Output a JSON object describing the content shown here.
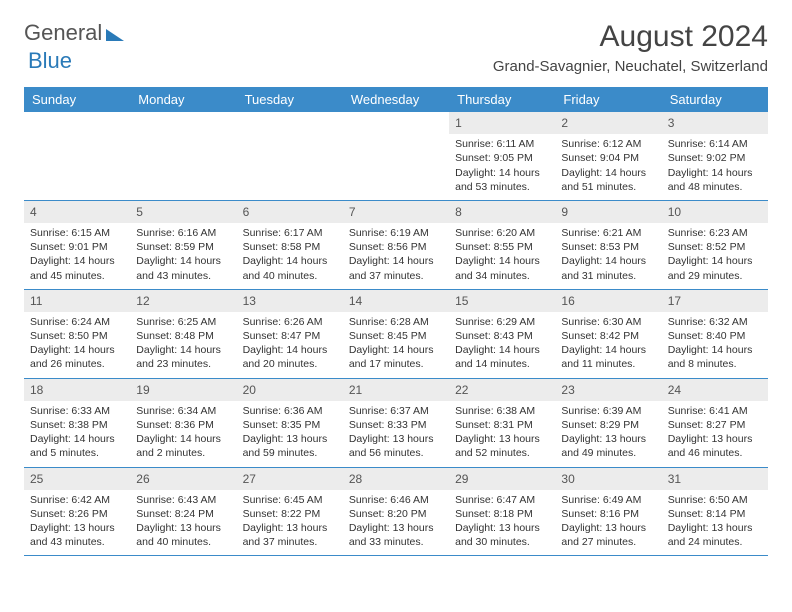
{
  "logo": {
    "text1": "General",
    "text2": "Blue"
  },
  "title": {
    "month": "August 2024",
    "location": "Grand-Savagnier, Neuchatel, Switzerland"
  },
  "colors": {
    "header_bg": "#3b8bc9",
    "header_text": "#ffffff",
    "daynum_bg": "#ececec",
    "border": "#3b8bc9",
    "logo_blue": "#2a7ab8"
  },
  "weekdays": [
    "Sunday",
    "Monday",
    "Tuesday",
    "Wednesday",
    "Thursday",
    "Friday",
    "Saturday"
  ],
  "weeks": [
    [
      null,
      null,
      null,
      null,
      {
        "n": "1",
        "sr": "Sunrise: 6:11 AM",
        "ss": "Sunset: 9:05 PM",
        "dl": "Daylight: 14 hours and 53 minutes."
      },
      {
        "n": "2",
        "sr": "Sunrise: 6:12 AM",
        "ss": "Sunset: 9:04 PM",
        "dl": "Daylight: 14 hours and 51 minutes."
      },
      {
        "n": "3",
        "sr": "Sunrise: 6:14 AM",
        "ss": "Sunset: 9:02 PM",
        "dl": "Daylight: 14 hours and 48 minutes."
      }
    ],
    [
      {
        "n": "4",
        "sr": "Sunrise: 6:15 AM",
        "ss": "Sunset: 9:01 PM",
        "dl": "Daylight: 14 hours and 45 minutes."
      },
      {
        "n": "5",
        "sr": "Sunrise: 6:16 AM",
        "ss": "Sunset: 8:59 PM",
        "dl": "Daylight: 14 hours and 43 minutes."
      },
      {
        "n": "6",
        "sr": "Sunrise: 6:17 AM",
        "ss": "Sunset: 8:58 PM",
        "dl": "Daylight: 14 hours and 40 minutes."
      },
      {
        "n": "7",
        "sr": "Sunrise: 6:19 AM",
        "ss": "Sunset: 8:56 PM",
        "dl": "Daylight: 14 hours and 37 minutes."
      },
      {
        "n": "8",
        "sr": "Sunrise: 6:20 AM",
        "ss": "Sunset: 8:55 PM",
        "dl": "Daylight: 14 hours and 34 minutes."
      },
      {
        "n": "9",
        "sr": "Sunrise: 6:21 AM",
        "ss": "Sunset: 8:53 PM",
        "dl": "Daylight: 14 hours and 31 minutes."
      },
      {
        "n": "10",
        "sr": "Sunrise: 6:23 AM",
        "ss": "Sunset: 8:52 PM",
        "dl": "Daylight: 14 hours and 29 minutes."
      }
    ],
    [
      {
        "n": "11",
        "sr": "Sunrise: 6:24 AM",
        "ss": "Sunset: 8:50 PM",
        "dl": "Daylight: 14 hours and 26 minutes."
      },
      {
        "n": "12",
        "sr": "Sunrise: 6:25 AM",
        "ss": "Sunset: 8:48 PM",
        "dl": "Daylight: 14 hours and 23 minutes."
      },
      {
        "n": "13",
        "sr": "Sunrise: 6:26 AM",
        "ss": "Sunset: 8:47 PM",
        "dl": "Daylight: 14 hours and 20 minutes."
      },
      {
        "n": "14",
        "sr": "Sunrise: 6:28 AM",
        "ss": "Sunset: 8:45 PM",
        "dl": "Daylight: 14 hours and 17 minutes."
      },
      {
        "n": "15",
        "sr": "Sunrise: 6:29 AM",
        "ss": "Sunset: 8:43 PM",
        "dl": "Daylight: 14 hours and 14 minutes."
      },
      {
        "n": "16",
        "sr": "Sunrise: 6:30 AM",
        "ss": "Sunset: 8:42 PM",
        "dl": "Daylight: 14 hours and 11 minutes."
      },
      {
        "n": "17",
        "sr": "Sunrise: 6:32 AM",
        "ss": "Sunset: 8:40 PM",
        "dl": "Daylight: 14 hours and 8 minutes."
      }
    ],
    [
      {
        "n": "18",
        "sr": "Sunrise: 6:33 AM",
        "ss": "Sunset: 8:38 PM",
        "dl": "Daylight: 14 hours and 5 minutes."
      },
      {
        "n": "19",
        "sr": "Sunrise: 6:34 AM",
        "ss": "Sunset: 8:36 PM",
        "dl": "Daylight: 14 hours and 2 minutes."
      },
      {
        "n": "20",
        "sr": "Sunrise: 6:36 AM",
        "ss": "Sunset: 8:35 PM",
        "dl": "Daylight: 13 hours and 59 minutes."
      },
      {
        "n": "21",
        "sr": "Sunrise: 6:37 AM",
        "ss": "Sunset: 8:33 PM",
        "dl": "Daylight: 13 hours and 56 minutes."
      },
      {
        "n": "22",
        "sr": "Sunrise: 6:38 AM",
        "ss": "Sunset: 8:31 PM",
        "dl": "Daylight: 13 hours and 52 minutes."
      },
      {
        "n": "23",
        "sr": "Sunrise: 6:39 AM",
        "ss": "Sunset: 8:29 PM",
        "dl": "Daylight: 13 hours and 49 minutes."
      },
      {
        "n": "24",
        "sr": "Sunrise: 6:41 AM",
        "ss": "Sunset: 8:27 PM",
        "dl": "Daylight: 13 hours and 46 minutes."
      }
    ],
    [
      {
        "n": "25",
        "sr": "Sunrise: 6:42 AM",
        "ss": "Sunset: 8:26 PM",
        "dl": "Daylight: 13 hours and 43 minutes."
      },
      {
        "n": "26",
        "sr": "Sunrise: 6:43 AM",
        "ss": "Sunset: 8:24 PM",
        "dl": "Daylight: 13 hours and 40 minutes."
      },
      {
        "n": "27",
        "sr": "Sunrise: 6:45 AM",
        "ss": "Sunset: 8:22 PM",
        "dl": "Daylight: 13 hours and 37 minutes."
      },
      {
        "n": "28",
        "sr": "Sunrise: 6:46 AM",
        "ss": "Sunset: 8:20 PM",
        "dl": "Daylight: 13 hours and 33 minutes."
      },
      {
        "n": "29",
        "sr": "Sunrise: 6:47 AM",
        "ss": "Sunset: 8:18 PM",
        "dl": "Daylight: 13 hours and 30 minutes."
      },
      {
        "n": "30",
        "sr": "Sunrise: 6:49 AM",
        "ss": "Sunset: 8:16 PM",
        "dl": "Daylight: 13 hours and 27 minutes."
      },
      {
        "n": "31",
        "sr": "Sunrise: 6:50 AM",
        "ss": "Sunset: 8:14 PM",
        "dl": "Daylight: 13 hours and 24 minutes."
      }
    ]
  ]
}
